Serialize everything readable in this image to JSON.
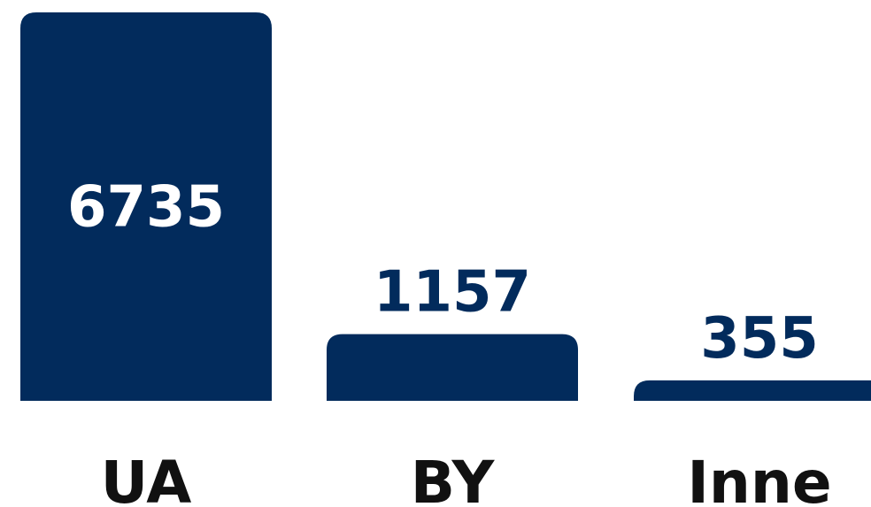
{
  "chart_data": {
    "type": "bar",
    "categories": [
      "UA",
      "BY",
      "Inne"
    ],
    "values": [
      6735,
      1157,
      355
    ],
    "value_labels": [
      "6735",
      "1157",
      "355"
    ],
    "ylim": [
      0,
      6735
    ],
    "grid": false,
    "colors": {
      "bar": "#022b5c",
      "label_inside": "#ffffff",
      "label_outside": "#022b5c",
      "category_text": "#111111"
    }
  }
}
